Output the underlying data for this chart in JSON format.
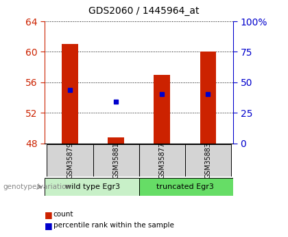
{
  "title": "GDS2060 / 1445964_at",
  "samples": [
    "GSM35879",
    "GSM35881",
    "GSM35877",
    "GSM35883"
  ],
  "group_labels": [
    "wild type Egr3",
    "truncated Egr3"
  ],
  "group_colors": [
    "#c8f0c8",
    "#66dd66"
  ],
  "bar_values": [
    61.0,
    48.8,
    57.0,
    60.0
  ],
  "bar_base": 48.0,
  "percentile_values": [
    55.0,
    53.5,
    54.5,
    54.5
  ],
  "ylim_left": [
    48,
    64
  ],
  "ylim_right": [
    0,
    100
  ],
  "yticks_left": [
    48,
    52,
    56,
    60,
    64
  ],
  "yticks_right": [
    0,
    25,
    50,
    75,
    100
  ],
  "ytick_labels_right": [
    "0",
    "25",
    "50",
    "75",
    "100%"
  ],
  "bar_color": "#cc2200",
  "percentile_color": "#0000cc",
  "bar_width": 0.35,
  "xlabel": "genotype/variation",
  "left_axis_color": "#cc2200",
  "right_axis_color": "#0000cc",
  "legend_count_label": "count",
  "legend_pct_label": "percentile rank within the sample",
  "sample_box_color": "#d4d4d4",
  "fig_bg": "#ffffff"
}
